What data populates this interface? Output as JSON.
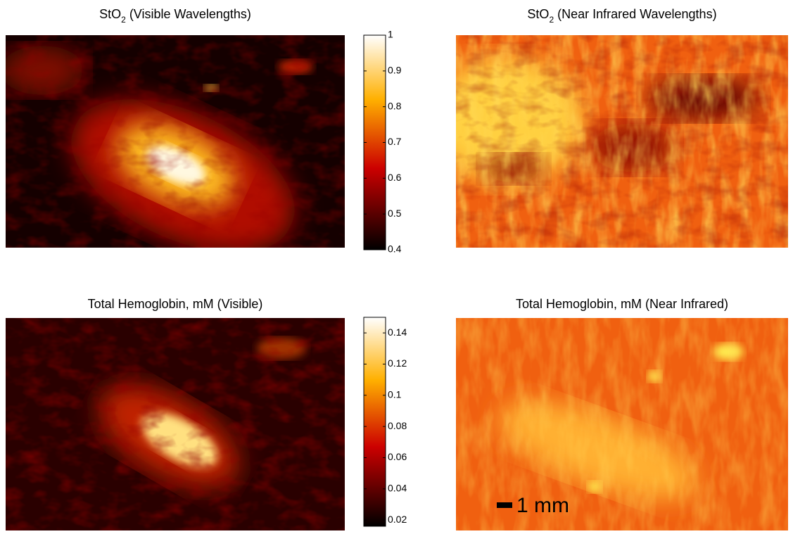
{
  "panels": [
    {
      "title_main": "StO",
      "title_sub": "2",
      "title_rest": "(Visible Wavelengths)"
    },
    {
      "title_main": "StO",
      "title_sub": "2",
      "title_rest": "(Near Infrared Wavelengths)"
    },
    {
      "title_main": "Total Hemoglobin, mM (Visible)"
    },
    {
      "title_main": "Total Hemoglobin, mM (Near Infrared)"
    }
  ],
  "colorbars": [
    {
      "ylim": [
        0.4,
        1
      ],
      "yticks": [
        0.4,
        0.5,
        0.6,
        0.7,
        0.8,
        0.9,
        1
      ]
    },
    {
      "ylim": [
        0.016,
        0.15
      ],
      "yticks": [
        0.02,
        0.04,
        0.06,
        0.08,
        0.1,
        0.12,
        0.14
      ]
    }
  ],
  "scale_bar": "1 mm"
}
